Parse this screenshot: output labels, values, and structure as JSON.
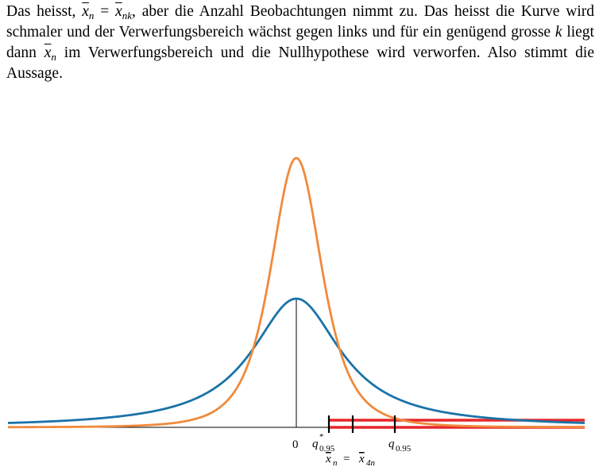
{
  "paragraph": {
    "t1": "Das heisst, ",
    "xbar": "x",
    "sub_n": "n",
    "eq": " = ",
    "sub_nk": "nk",
    "t2": ", aber die Anzahl Beobachtungen nimmt zu. Das heisst die Kurve wird schmaler und der Verwerfungsbereich wächst gegen links und für ein genügend grosse ",
    "k": "k",
    "t3": " liegt dann ",
    "t4": " im Verwerfungsbereich und die Nullhypothese wird verworfen. Also stimmt die Aussage."
  },
  "figure": {
    "labels": {
      "zero": "0",
      "q_star": "q",
      "q_star_sup": "*",
      "q_star_sub": "0.95",
      "q": "q",
      "q_sub": "0.95",
      "eq_x": "x",
      "eq_n": "n",
      "eq_sign": "=",
      "eq_x2": "x",
      "eq_4n": "4n"
    },
    "colors": {
      "wide_curve": "#1a73a8",
      "narrow_curve": "#f08a3c",
      "rejection_region": "#e8262a",
      "axis": "#000000"
    }
  }
}
